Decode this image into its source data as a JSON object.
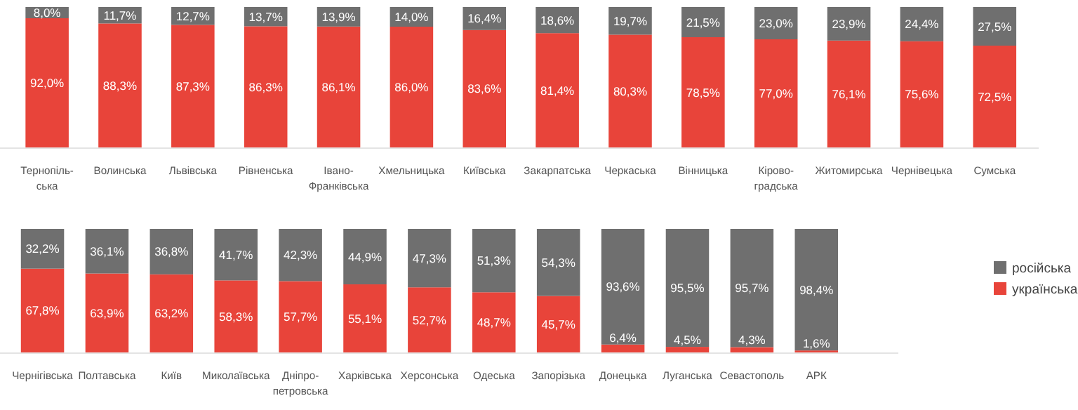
{
  "chart_data": [
    {
      "type": "bar",
      "stacked": true,
      "legend": false,
      "categories": [
        "Тернопіль-ська",
        "Волинська",
        "Львівська",
        "Рівненська",
        "Івано-Франківська",
        "Хмельницька",
        "Київська",
        "Закарпатська",
        "Черкаська",
        "Вінницька",
        "Кірово-градська",
        "Житомирська",
        "Чернівецька",
        "Сумська"
      ],
      "series": [
        {
          "color": "#e8443a",
          "values": [
            92.0,
            88.3,
            87.3,
            86.3,
            86.1,
            86.0,
            83.6,
            81.4,
            80.3,
            78.5,
            77.0,
            76.1,
            75.6,
            72.5
          ],
          "value_labels": [
            "92,0%",
            "88,3%",
            "87,3%",
            "86,3%",
            "86,1%",
            "86,0%",
            "83,6%",
            "81,4%",
            "80,3%",
            "78,5%",
            "77,0%",
            "76,1%",
            "75,6%",
            "72,5%"
          ]
        },
        {
          "color": "#6f6f6f",
          "values": [
            8.0,
            11.7,
            12.7,
            13.7,
            13.9,
            14.0,
            16.4,
            18.6,
            19.7,
            21.5,
            23.0,
            23.9,
            24.4,
            27.5
          ],
          "value_labels": [
            "8,0%",
            "11,7%",
            "12,7%",
            "13,7%",
            "13,9%",
            "14,0%",
            "16,4%",
            "18,6%",
            "19,7%",
            "21,5%",
            "23,0%",
            "23,9%",
            "24,4%",
            "27,5%"
          ]
        }
      ]
    },
    {
      "type": "bar",
      "stacked": true,
      "legend": "right",
      "categories": [
        "Чернігівська",
        "Полтавська",
        "Київ",
        "Миколаївська",
        "Дніпро-петровська",
        "Харківська",
        "Херсонська",
        "Одеська",
        "Запорізька",
        "Донецька",
        "Луганська",
        "Севастополь",
        "АРК"
      ],
      "series": [
        {
          "name": "українська",
          "color": "#e8443a",
          "values": [
            67.8,
            63.9,
            63.2,
            58.3,
            57.7,
            55.1,
            52.7,
            48.7,
            45.7,
            6.4,
            4.5,
            4.3,
            1.6
          ],
          "value_labels": [
            "67,8%",
            "63,9%",
            "63,2%",
            "58,3%",
            "57,7%",
            "55,1%",
            "52,7%",
            "48,7%",
            "45,7%",
            "6,4%",
            "4,5%",
            "4,3%",
            "1,6%"
          ]
        },
        {
          "name": "російська",
          "color": "#6f6f6f",
          "values": [
            32.2,
            36.1,
            36.8,
            41.7,
            42.3,
            44.9,
            47.3,
            51.3,
            54.3,
            93.6,
            95.5,
            95.7,
            98.4
          ],
          "value_labels": [
            "32,2%",
            "36,1%",
            "36,8%",
            "41,7%",
            "42,3%",
            "44,9%",
            "47,3%",
            "51,3%",
            "54,3%",
            "93,6%",
            "95,5%",
            "95,7%",
            "98,4%"
          ]
        }
      ]
    }
  ]
}
